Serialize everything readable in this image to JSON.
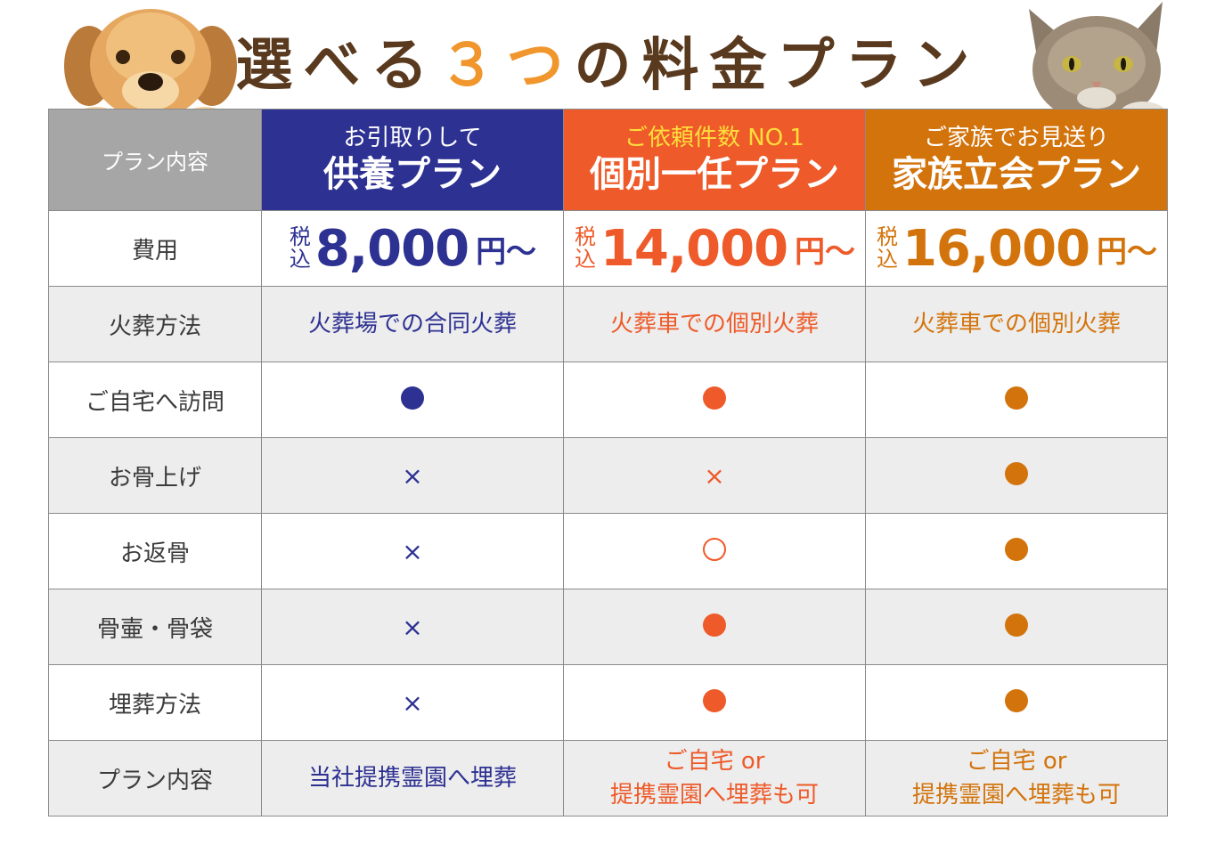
{
  "title": {
    "before": "選べる",
    "accent": "３つ",
    "after": "の料金プラン"
  },
  "colors": {
    "navy": "#2d3192",
    "red": "#ee5a29",
    "orange": "#d3730b",
    "brown": "#5a3a1e",
    "accent": "#f0962c"
  },
  "icons": {
    "left": "dog-illustration",
    "right": "cat-illustration",
    "yes": "filled-circle",
    "partial": "open-circle",
    "no": "cross"
  },
  "header": {
    "label": "プラン内容",
    "plans": [
      {
        "sub": "お引取りして",
        "name": "供養プラン"
      },
      {
        "sub": "ご依頼件数 NO.1",
        "name": "個別一任プラン"
      },
      {
        "sub": "ご家族でお見送り",
        "name": "家族立会プラン"
      }
    ]
  },
  "rows": {
    "cost": {
      "label": "費用",
      "tax1": "税",
      "tax2": "込",
      "yen": "円～",
      "values": [
        "8,000",
        "14,000",
        "16,000"
      ]
    },
    "method": {
      "label": "火葬方法",
      "values": [
        "火葬場での合同火葬",
        "火葬車での個別火葬",
        "火葬車での個別火葬"
      ]
    },
    "visit": {
      "label": "ご自宅へ訪問"
    },
    "bones": {
      "label": "お骨上げ",
      "cross": "×"
    },
    "return": {
      "label": "お返骨",
      "cross": "×"
    },
    "urn": {
      "label": "骨壷・骨袋",
      "cross": "×"
    },
    "burial": {
      "label": "埋葬方法",
      "cross": "×"
    },
    "content": {
      "label": "プラン内容",
      "v1": "当社提携霊園へ埋葬",
      "v2a": "ご自宅 or",
      "v2b": "提携霊園へ埋葬も可",
      "v3a": "ご自宅 or",
      "v3b": "提携霊園へ埋葬も可"
    }
  }
}
